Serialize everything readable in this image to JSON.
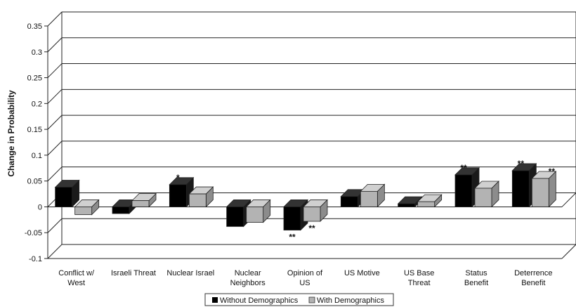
{
  "chart_data": {
    "type": "bar",
    "title": "",
    "xlabel": "",
    "ylabel": "Change in Probability",
    "ylim": [
      -0.1,
      0.35
    ],
    "yticks": [
      "0.35",
      "0.3",
      "0.25",
      "0.2",
      "0.15",
      "0.1",
      "0.05",
      "0",
      "-0.05",
      "-0.1"
    ],
    "grid": true,
    "legend_position": "bottom",
    "categories": [
      [
        "Conflict w/",
        "West"
      ],
      [
        "Israeli Threat"
      ],
      [
        "Nuclear Israel"
      ],
      [
        "Nuclear",
        "Neighbors"
      ],
      [
        "Opinion of",
        "US"
      ],
      [
        "US Motive"
      ],
      [
        "US Base",
        "Threat"
      ],
      [
        "Status",
        "Benefit"
      ],
      [
        "Deterrence",
        "Benefit"
      ]
    ],
    "series": [
      {
        "name": "Without Demographics",
        "color": "#000000",
        "values": [
          0.038,
          -0.013,
          0.043,
          -0.038,
          -0.045,
          0.02,
          0.006,
          0.062,
          0.07
        ],
        "significance": [
          "",
          "",
          "*",
          "",
          "**",
          "",
          "",
          "**",
          "**"
        ]
      },
      {
        "name": "With Demographics",
        "color": "#b3b3b3",
        "values": [
          -0.015,
          0.012,
          0.025,
          -0.03,
          -0.028,
          0.03,
          0.01,
          0.036,
          0.055
        ],
        "significance": [
          "",
          "",
          "",
          "",
          "**",
          "",
          "",
          "",
          "**"
        ]
      }
    ]
  }
}
